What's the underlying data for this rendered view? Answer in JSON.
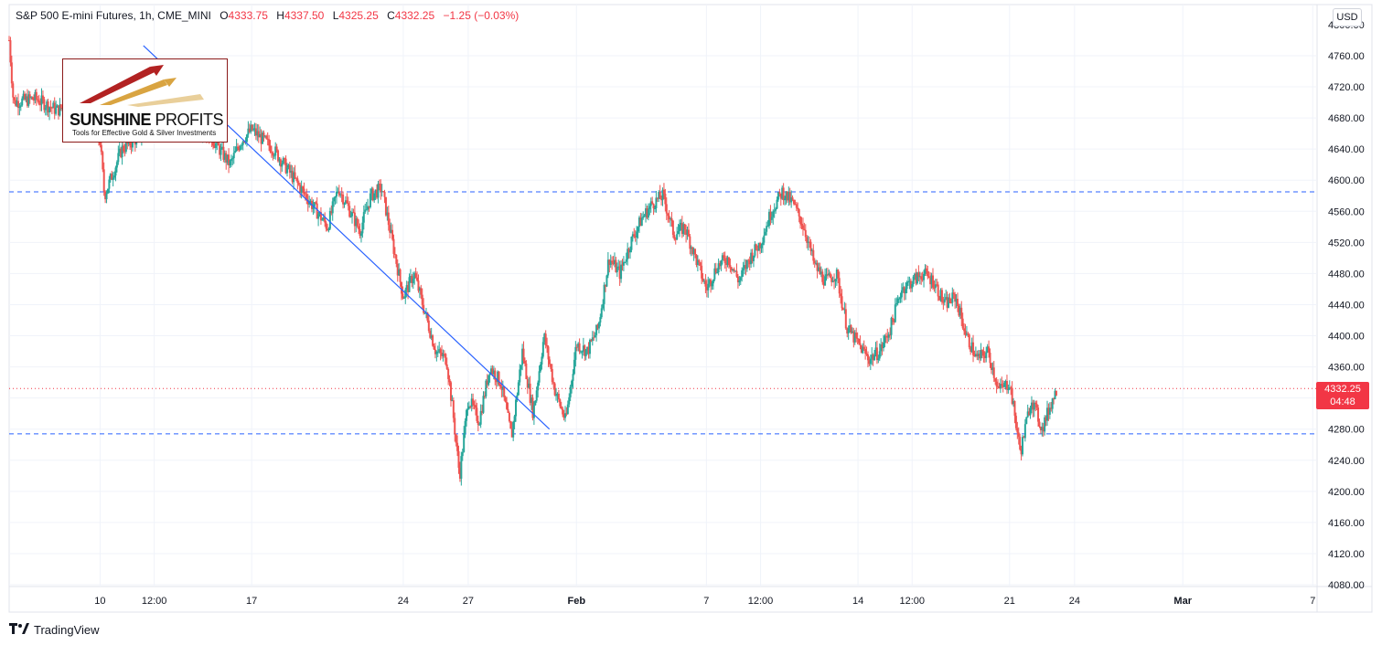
{
  "header": {
    "symbol": "S&P 500 E-mini Futures, 1h, CME_MINI",
    "open_label": "O",
    "open": "4333.75",
    "high_label": "H",
    "high": "4337.50",
    "low_label": "L",
    "low": "4325.25",
    "close_label": "C",
    "close": "4332.25",
    "change": "−1.25 (−0.03%)"
  },
  "currency_button": "USD",
  "price_tag": {
    "price": "4332.25",
    "countdown": "04:48",
    "color": "#f23645"
  },
  "logo": {
    "name_bold": "SUNSHINE",
    "name_thin": " PROFITS",
    "tagline": "Tools for Effective Gold & Silver Investments",
    "border_color": "#8b1a1a"
  },
  "footer": {
    "brand_icon": "tradingview-logo-icon",
    "brand_text": "TradingView"
  },
  "chart_data": {
    "type": "candlestick",
    "ylim": [
      4060,
      4800
    ],
    "y_ticks": [
      4080,
      4120,
      4160,
      4200,
      4240,
      4280,
      4320,
      4360,
      4400,
      4440,
      4480,
      4520,
      4560,
      4600,
      4640,
      4680,
      4720,
      4760
    ],
    "y_tick_labels": [
      "4080.00",
      "4120.00",
      "4160.00",
      "4200.00",
      "4240.00",
      "4280.00",
      "4320.00",
      "4360.00",
      "4400.00",
      "4440.00",
      "4480.00",
      "4520.00",
      "4560.00",
      "4600.00",
      "4640.00",
      "4680.00",
      "4720.00",
      "4760.00"
    ],
    "x_tick_labels": [
      "10",
      "12:00",
      "17",
      "24",
      "27",
      "Feb",
      "7",
      "12:00",
      "14",
      "12:00",
      "21",
      "24",
      "Mar",
      "7"
    ],
    "x_tick_days": [
      10,
      12.5,
      17,
      24,
      27,
      32,
      38,
      40.5,
      45,
      47.5,
      52,
      55,
      60,
      66
    ],
    "x_range_days": [
      5.8,
      66.2
    ],
    "x_unit": "days from Jan 1",
    "colors": {
      "up": "#26a69a",
      "down": "#ef5350",
      "trendline": "#2962ff",
      "support": "#2962ff",
      "last_price": "#f23645",
      "grid": "#f0f3fa"
    },
    "horizontal_levels": [
      {
        "style": "dashed",
        "price": 4585
      },
      {
        "style": "dashed",
        "price": 4274
      },
      {
        "style": "dotted-last-price",
        "price": 4332.25
      }
    ],
    "trendline": {
      "from": {
        "day": 12.0,
        "price": 4773
      },
      "to": {
        "day": 30.75,
        "price": 4280
      }
    },
    "price_path": [
      [
        5.8,
        4780
      ],
      [
        6.0,
        4700
      ],
      [
        7.0,
        4705
      ],
      [
        8.0,
        4690
      ],
      [
        9.0,
        4700
      ],
      [
        10.0,
        4650
      ],
      [
        10.2,
        4580
      ],
      [
        11.0,
        4640
      ],
      [
        12.0,
        4660
      ],
      [
        13.0,
        4680
      ],
      [
        14.0,
        4680
      ],
      [
        15.0,
        4660
      ],
      [
        16.0,
        4620
      ],
      [
        16.5,
        4650
      ],
      [
        17.0,
        4665
      ],
      [
        18.0,
        4640
      ],
      [
        19.0,
        4600
      ],
      [
        20.0,
        4560
      ],
      [
        20.5,
        4540
      ],
      [
        21.0,
        4590
      ],
      [
        22.0,
        4535
      ],
      [
        22.5,
        4580
      ],
      [
        23.0,
        4590
      ],
      [
        23.5,
        4520
      ],
      [
        24.0,
        4450
      ],
      [
        24.5,
        4480
      ],
      [
        25.0,
        4430
      ],
      [
        25.5,
        4380
      ],
      [
        26.0,
        4370
      ],
      [
        26.3,
        4300
      ],
      [
        26.6,
        4220
      ],
      [
        27.0,
        4320
      ],
      [
        27.5,
        4290
      ],
      [
        28.0,
        4360
      ],
      [
        28.5,
        4340
      ],
      [
        29.0,
        4270
      ],
      [
        29.5,
        4380
      ],
      [
        30.0,
        4300
      ],
      [
        30.5,
        4400
      ],
      [
        31.0,
        4330
      ],
      [
        31.5,
        4290
      ],
      [
        32.0,
        4390
      ],
      [
        32.5,
        4380
      ],
      [
        33.0,
        4410
      ],
      [
        33.5,
        4500
      ],
      [
        34.0,
        4480
      ],
      [
        34.5,
        4520
      ],
      [
        35.0,
        4550
      ],
      [
        35.5,
        4570
      ],
      [
        36.0,
        4580
      ],
      [
        36.5,
        4530
      ],
      [
        37.0,
        4540
      ],
      [
        37.5,
        4500
      ],
      [
        38.0,
        4460
      ],
      [
        38.5,
        4490
      ],
      [
        39.0,
        4500
      ],
      [
        39.5,
        4470
      ],
      [
        40.0,
        4500
      ],
      [
        40.5,
        4520
      ],
      [
        41.0,
        4560
      ],
      [
        41.5,
        4585
      ],
      [
        42.0,
        4570
      ],
      [
        42.5,
        4540
      ],
      [
        43.0,
        4490
      ],
      [
        43.5,
        4470
      ],
      [
        44.0,
        4480
      ],
      [
        44.5,
        4410
      ],
      [
        45.0,
        4390
      ],
      [
        45.5,
        4370
      ],
      [
        46.0,
        4380
      ],
      [
        46.5,
        4410
      ],
      [
        47.0,
        4460
      ],
      [
        47.5,
        4470
      ],
      [
        48.0,
        4480
      ],
      [
        48.5,
        4470
      ],
      [
        49.0,
        4440
      ],
      [
        49.5,
        4450
      ],
      [
        50.0,
        4400
      ],
      [
        50.5,
        4370
      ],
      [
        51.0,
        4380
      ],
      [
        51.5,
        4330
      ],
      [
        52.0,
        4340
      ],
      [
        52.5,
        4250
      ],
      [
        53.0,
        4320
      ],
      [
        53.5,
        4280
      ],
      [
        54.0,
        4320
      ],
      [
        54.2,
        4332
      ]
    ]
  }
}
